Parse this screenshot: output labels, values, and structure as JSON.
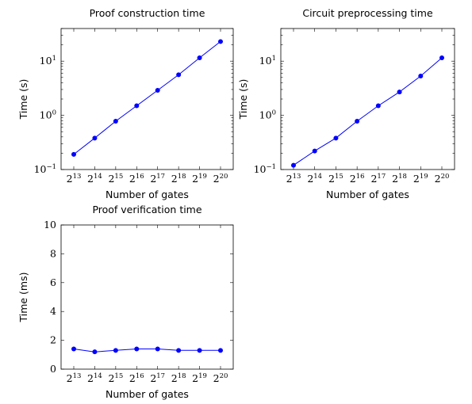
{
  "chart_data": [
    {
      "type": "line",
      "title": "Proof construction time",
      "xlabel": "Number of gates",
      "ylabel": "Time (s)",
      "yscale": "log",
      "ylim": [
        0.1,
        40
      ],
      "x_ticks": [
        "2^13",
        "2^14",
        "2^15",
        "2^16",
        "2^17",
        "2^18",
        "2^19",
        "2^20"
      ],
      "y_ticks": [
        "10^-1",
        "10^0",
        "10^1"
      ],
      "x": [
        "2^13",
        "2^14",
        "2^15",
        "2^16",
        "2^17",
        "2^18",
        "2^19",
        "2^20"
      ],
      "values": [
        0.19,
        0.38,
        0.78,
        1.5,
        2.9,
        5.6,
        11.5,
        23
      ],
      "color": "#0000ff",
      "grid": false
    },
    {
      "type": "line",
      "title": "Circuit preprocessing time",
      "xlabel": "Number of gates",
      "ylabel": "Time (s)",
      "yscale": "log",
      "ylim": [
        0.1,
        40
      ],
      "x_ticks": [
        "2^13",
        "2^14",
        "2^15",
        "2^16",
        "2^17",
        "2^18",
        "2^19",
        "2^20"
      ],
      "y_ticks": [
        "10^-1",
        "10^0",
        "10^1"
      ],
      "x": [
        "2^13",
        "2^14",
        "2^15",
        "2^16",
        "2^17",
        "2^18",
        "2^19",
        "2^20"
      ],
      "values": [
        0.12,
        0.22,
        0.38,
        0.78,
        1.5,
        2.7,
        5.3,
        11.5
      ],
      "color": "#0000ff",
      "grid": false
    },
    {
      "type": "line",
      "title": "Proof verification time",
      "xlabel": "Number of gates",
      "ylabel": "Time (ms)",
      "yscale": "linear",
      "ylim": [
        0,
        10
      ],
      "x_ticks": [
        "2^13",
        "2^14",
        "2^15",
        "2^16",
        "2^17",
        "2^18",
        "2^19",
        "2^20"
      ],
      "y_ticks": [
        "0",
        "2",
        "4",
        "6",
        "8",
        "10"
      ],
      "x": [
        "2^13",
        "2^14",
        "2^15",
        "2^16",
        "2^17",
        "2^18",
        "2^19",
        "2^20"
      ],
      "values": [
        1.4,
        1.2,
        1.3,
        1.4,
        1.4,
        1.3,
        1.3,
        1.3
      ],
      "color": "#0000ff",
      "grid": false
    }
  ]
}
